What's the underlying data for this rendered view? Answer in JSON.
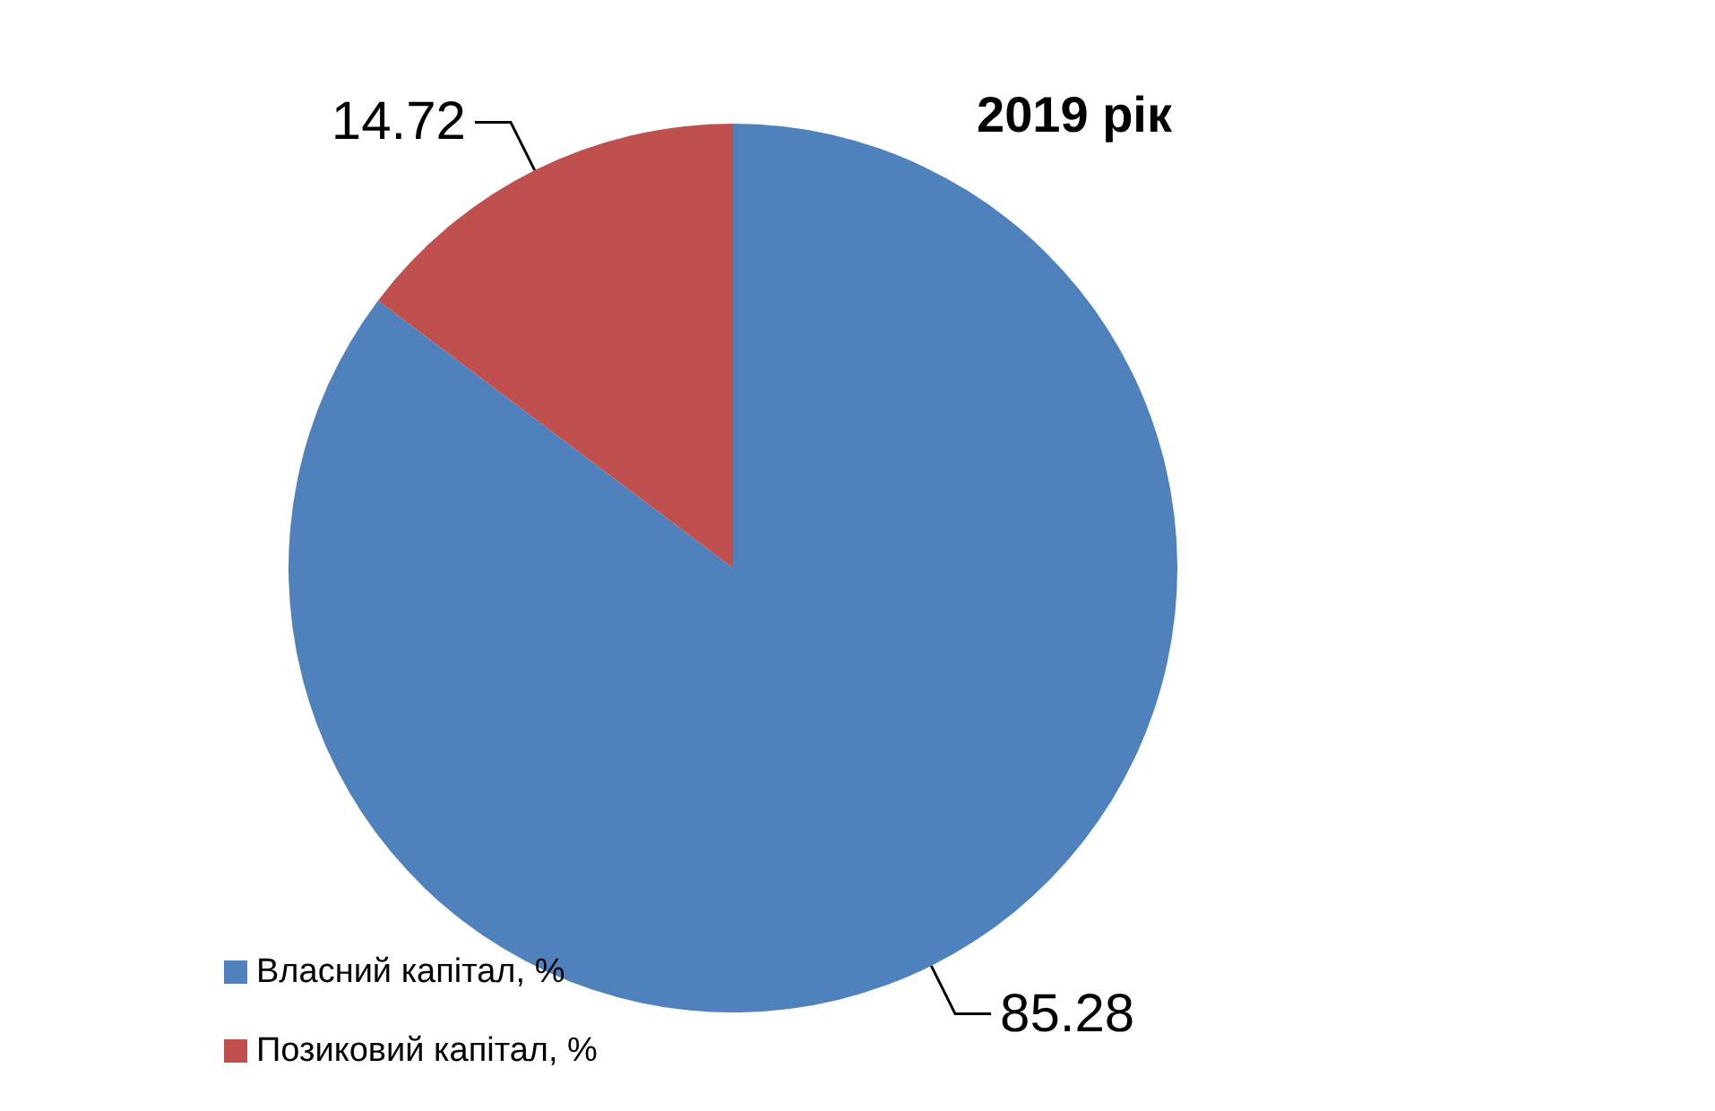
{
  "chart_data": {
    "type": "pie",
    "title": "2019 рік",
    "categories": [
      "Власний капітал, %",
      "Позиковий капітал, %"
    ],
    "values": [
      85.28,
      14.72
    ],
    "colors": [
      "#4f81bd",
      "#c0504d"
    ],
    "data_labels": true,
    "legend": "bottom left"
  }
}
